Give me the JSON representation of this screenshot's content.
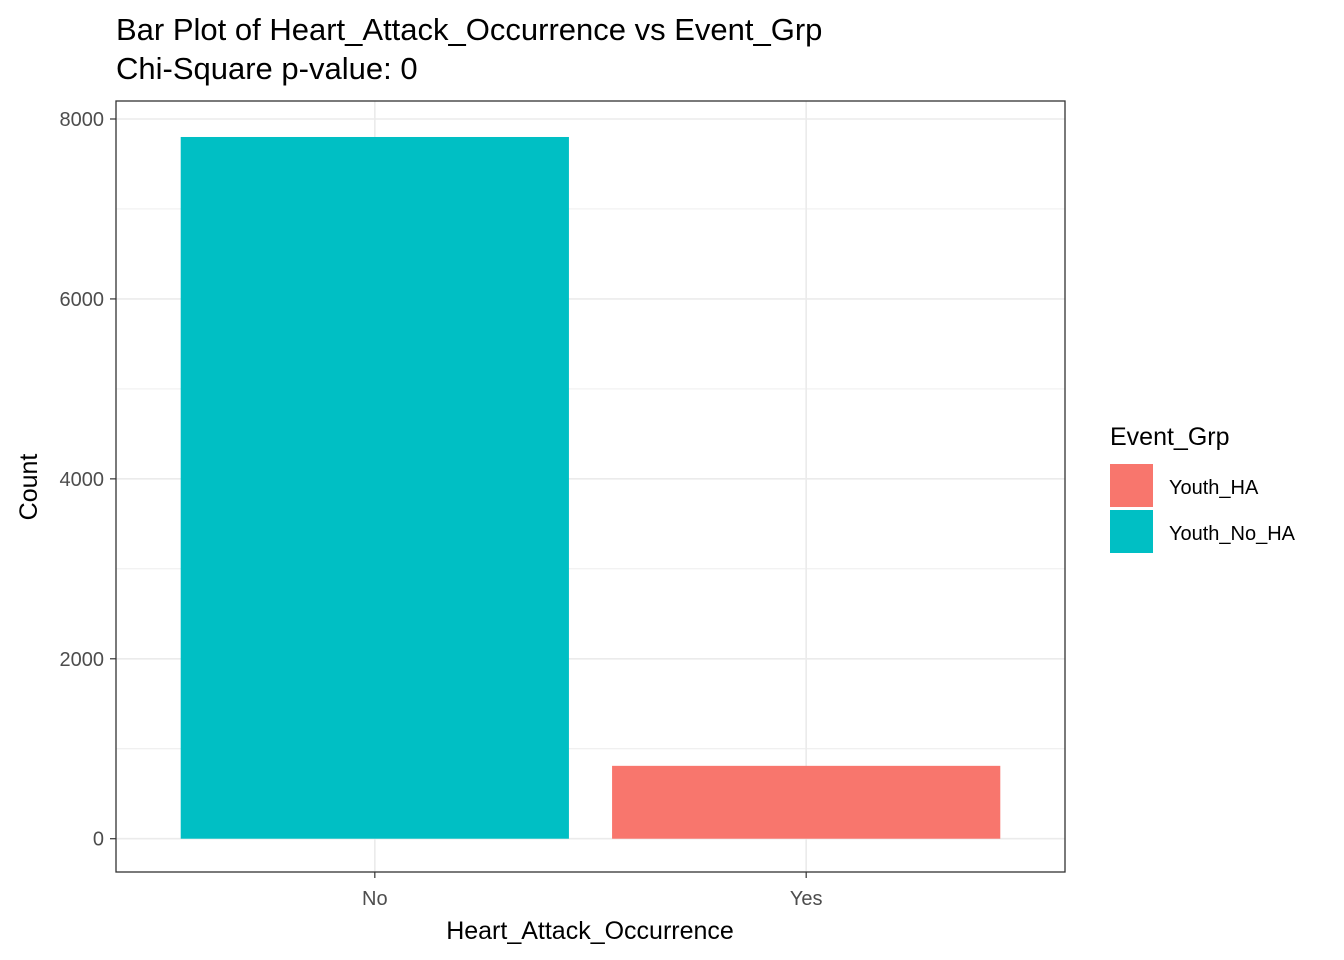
{
  "chart_data": {
    "type": "bar",
    "title": "Bar Plot of Heart_Attack_Occurrence vs Event_Grp",
    "subtitle": "Chi-Square p-value: 0",
    "xlabel": "Heart_Attack_Occurrence",
    "ylabel": "Count",
    "categories": [
      "No",
      "Yes"
    ],
    "bars": [
      {
        "category": "No",
        "group": "Youth_No_HA",
        "value": 7800
      },
      {
        "category": "Yes",
        "group": "Youth_HA",
        "value": 810
      }
    ],
    "ylim": [
      -370,
      8200
    ],
    "yticks": [
      0,
      2000,
      4000,
      6000,
      8000
    ],
    "ytick_labels": [
      "0",
      "2000",
      "4000",
      "6000",
      "8000"
    ],
    "grid": true,
    "legend": {
      "title": "Event_Grp",
      "position": "right",
      "items": [
        {
          "label": "Youth_HA",
          "color": "#F8766D"
        },
        {
          "label": "Youth_No_HA",
          "color": "#00BFC4"
        }
      ]
    }
  }
}
